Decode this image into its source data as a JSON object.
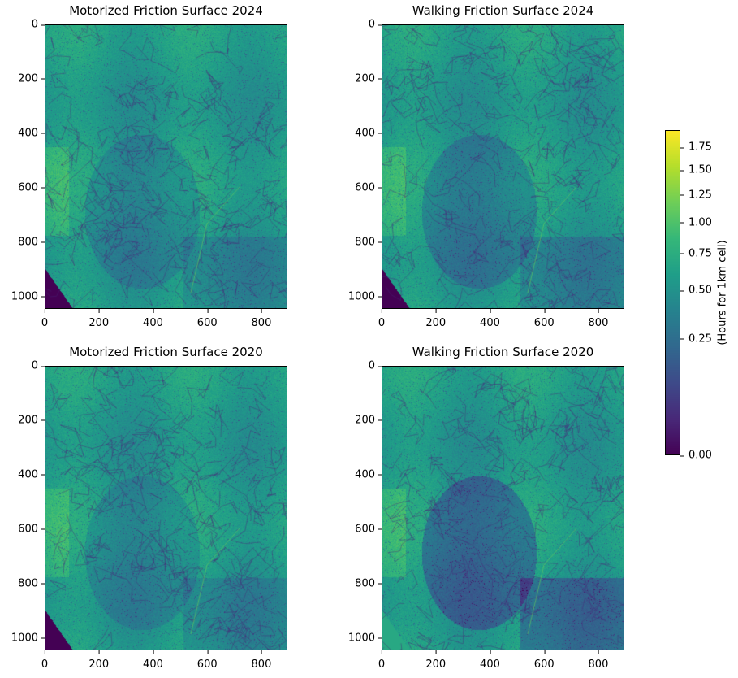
{
  "chart_data": [
    {
      "type": "heatmap",
      "title": "Motorized Friction Surface 2024",
      "xlim": [
        0,
        896
      ],
      "ylim": [
        1045,
        0
      ],
      "xticks": [
        0,
        200,
        400,
        600,
        800
      ],
      "yticks": [
        0,
        200,
        400,
        600,
        800,
        1000
      ],
      "colormap": "viridis"
    },
    {
      "type": "heatmap",
      "title": "Walking Friction Surface 2024",
      "xlim": [
        0,
        896
      ],
      "ylim": [
        1045,
        0
      ],
      "xticks": [
        0,
        200,
        400,
        600,
        800
      ],
      "yticks": [
        0,
        200,
        400,
        600,
        800,
        1000
      ],
      "colormap": "viridis"
    },
    {
      "type": "heatmap",
      "title": "Motorized Friction Surface 2020",
      "xlim": [
        0,
        896
      ],
      "ylim": [
        1045,
        0
      ],
      "xticks": [
        0,
        200,
        400,
        600,
        800
      ],
      "yticks": [
        0,
        200,
        400,
        600,
        800,
        1000
      ],
      "colormap": "viridis"
    },
    {
      "type": "heatmap",
      "title": "Walking Friction Surface 2020",
      "xlim": [
        0,
        896
      ],
      "ylim": [
        1045,
        0
      ],
      "xticks": [
        0,
        200,
        400,
        600,
        800
      ],
      "yticks": [
        0,
        200,
        400,
        600,
        800,
        1000
      ],
      "colormap": "viridis"
    }
  ],
  "colorbar": {
    "label": "(Hours for 1km cell)",
    "ticks": [
      "0.00",
      "0.25",
      "0.50",
      "0.75",
      "1.00",
      "1.25",
      "1.50",
      "1.75"
    ],
    "tick_values": [
      0,
      0.25,
      0.5,
      0.75,
      1.0,
      1.25,
      1.5,
      1.75
    ],
    "range": [
      0,
      1.95
    ],
    "norm": "power",
    "gamma": 0.5,
    "colormap": "viridis"
  }
}
